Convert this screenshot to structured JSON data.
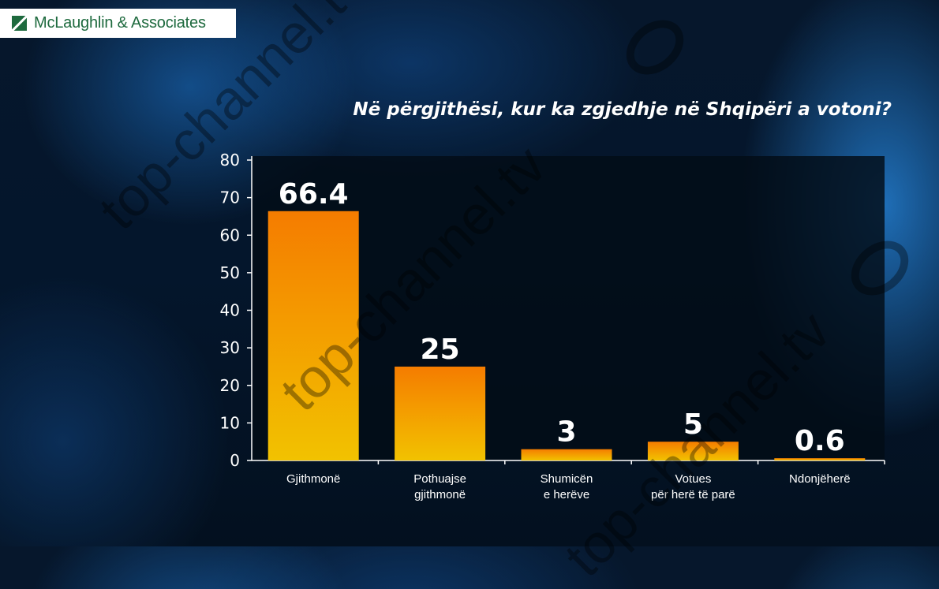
{
  "brand": {
    "name": "McLaughlin & Associates",
    "color": "#1e6a3e"
  },
  "watermark": {
    "text": "top-channel.tv"
  },
  "chart_data": {
    "type": "bar",
    "title": "Në përgjithësi, kur ka zgjedhje në Shqipëri a votoni?",
    "xlabel": "",
    "ylabel": "",
    "categories": [
      "Gjithmonë",
      "Pothuajse gjithmonë",
      "Shumicën e herëve",
      "Votues për herë të parë",
      "Ndonjëherë"
    ],
    "category_lines": [
      [
        "Gjithmonë"
      ],
      [
        "Pothuajse",
        "gjithmonë"
      ],
      [
        "Shumicën",
        "e herëve"
      ],
      [
        "Votues",
        "për herë të parë"
      ],
      [
        "Ndonjëherë"
      ]
    ],
    "values": [
      66.4,
      25,
      3,
      5,
      0.6
    ],
    "value_labels": [
      "66.4",
      "25",
      "3",
      "5",
      "0.6"
    ],
    "ylim": [
      0,
      80
    ],
    "yticks": [
      0,
      10,
      20,
      30,
      40,
      50,
      60,
      70,
      80
    ],
    "grid": false,
    "legend": "none",
    "colors": {
      "bar_top": "#f57c00",
      "bar_bottom": "#f2c200",
      "text": "#ffffff",
      "axis": "#ffffff"
    }
  }
}
